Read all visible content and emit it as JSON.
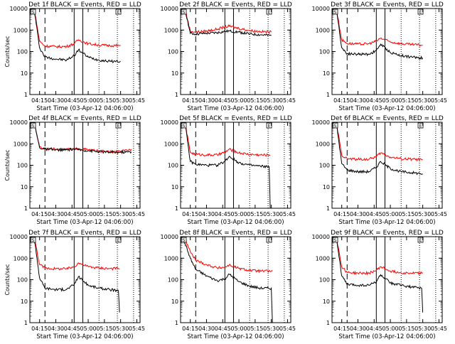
{
  "page": {
    "colors": {
      "events": "#000000",
      "lld": "#ff0000",
      "axes": "#000000"
    }
  },
  "panel_common": {
    "xlabel": "Start Time (03-Apr-12 04:06:00)",
    "ylabel": "Counts/sec",
    "x_ticks": [
      "04:15",
      "04:30",
      "04:45",
      "05:00",
      "05:15",
      "05:30",
      "05:45"
    ],
    "y_ticks": [
      "1",
      "10",
      "100",
      "1000",
      "10000"
    ],
    "marker_labels": [
      "S",
      "E"
    ]
  },
  "chart_data": [
    {
      "type": "line",
      "title": "Det 1f BLACK = Events, RED = LLD",
      "show_ylabel": true,
      "xlim": [
        "04:06",
        "05:48"
      ],
      "ylim": [
        1,
        10000
      ],
      "y_scale": "log",
      "x": [
        "04:06",
        "04:10",
        "04:15",
        "04:20",
        "04:30",
        "04:40",
        "04:47",
        "04:51",
        "05:00",
        "05:10",
        "05:20",
        "05:30"
      ],
      "series": [
        {
          "name": "BLACK = Events",
          "values": [
            9000,
            9000,
            150,
            55,
            45,
            40,
            65,
            120,
            55,
            40,
            35,
            35
          ]
        },
        {
          "name": "RED = LLD",
          "values": [
            10000,
            10000,
            300,
            180,
            170,
            170,
            230,
            350,
            230,
            200,
            190,
            190
          ]
        }
      ]
    },
    {
      "type": "line",
      "title": "Det 2f BLACK = Events, RED = LLD",
      "show_ylabel": false,
      "xlim": [
        "04:06",
        "05:48"
      ],
      "ylim": [
        1,
        10000
      ],
      "y_scale": "log",
      "x": [
        "04:06",
        "04:10",
        "04:15",
        "04:20",
        "04:30",
        "04:40",
        "04:47",
        "04:51",
        "05:00",
        "05:10",
        "05:20",
        "05:30"
      ],
      "series": [
        {
          "name": "BLACK = Events",
          "values": [
            10000,
            10000,
            700,
            650,
            700,
            750,
            850,
            900,
            800,
            650,
            600,
            550
          ]
        },
        {
          "name": "RED = LLD",
          "values": [
            10000,
            10000,
            900,
            800,
            900,
            1100,
            1400,
            1500,
            1200,
            950,
            850,
            800
          ]
        }
      ]
    },
    {
      "type": "line",
      "title": "Det 3f BLACK = Events, RED = LLD",
      "show_ylabel": false,
      "xlim": [
        "04:06",
        "05:48"
      ],
      "ylim": [
        1,
        10000
      ],
      "y_scale": "log",
      "x": [
        "04:06",
        "04:10",
        "04:15",
        "04:20",
        "04:30",
        "04:40",
        "04:47",
        "04:51",
        "05:00",
        "05:10",
        "05:20",
        "05:30"
      ],
      "series": [
        {
          "name": "BLACK = Events",
          "values": [
            10000,
            10000,
            150,
            80,
            75,
            75,
            110,
            220,
            90,
            65,
            55,
            50
          ]
        },
        {
          "name": "RED = LLD",
          "values": [
            10000,
            10000,
            350,
            240,
            220,
            230,
            300,
            420,
            280,
            230,
            210,
            200
          ]
        }
      ]
    },
    {
      "type": "line",
      "title": "Det 4f BLACK = Events, RED = LLD",
      "show_ylabel": true,
      "xlim": [
        "04:06",
        "05:48"
      ],
      "ylim": [
        1,
        10000
      ],
      "y_scale": "log",
      "x": [
        "04:06",
        "04:10",
        "04:15",
        "04:20",
        "04:30",
        "04:40",
        "04:47",
        "04:51",
        "05:00",
        "05:10",
        "05:20",
        "05:30",
        "05:40"
      ],
      "series": [
        {
          "name": "BLACK = Events",
          "values": [
            10000,
            10000,
            650,
            560,
            520,
            520,
            560,
            520,
            480,
            430,
            400,
            400,
            420
          ]
        },
        {
          "name": "RED = LLD",
          "values": [
            10000,
            10000,
            700,
            600,
            550,
            540,
            550,
            600,
            520,
            450,
            420,
            430,
            550
          ]
        }
      ]
    },
    {
      "type": "line",
      "title": "Det 5f BLACK = Events, RED = LLD",
      "show_ylabel": false,
      "xlim": [
        "04:06",
        "05:48"
      ],
      "ylim": [
        1,
        10000
      ],
      "y_scale": "log",
      "x": [
        "04:06",
        "04:10",
        "04:15",
        "04:20",
        "04:30",
        "04:40",
        "04:47",
        "04:51",
        "05:00",
        "05:10",
        "05:20",
        "05:28",
        "05:29"
      ],
      "series": [
        {
          "name": "BLACK = Events",
          "values": [
            10000,
            10000,
            150,
            110,
            100,
            100,
            150,
            260,
            130,
            100,
            90,
            85,
            1
          ]
        },
        {
          "name": "RED = LLD",
          "values": [
            10000,
            10000,
            400,
            320,
            300,
            300,
            400,
            550,
            380,
            320,
            300,
            300,
            300
          ]
        }
      ]
    },
    {
      "type": "line",
      "title": "Det 6f BLACK = Events, RED = LLD",
      "show_ylabel": false,
      "xlim": [
        "04:06",
        "05:48"
      ],
      "ylim": [
        1,
        10000
      ],
      "y_scale": "log",
      "x": [
        "04:06",
        "04:10",
        "04:15",
        "04:20",
        "04:30",
        "04:40",
        "04:47",
        "04:51",
        "05:00",
        "05:10",
        "05:20",
        "05:30"
      ],
      "series": [
        {
          "name": "BLACK = Events",
          "values": [
            10000,
            10000,
            120,
            60,
            50,
            50,
            80,
            150,
            70,
            50,
            45,
            40
          ]
        },
        {
          "name": "RED = LLD",
          "values": [
            10000,
            10000,
            300,
            200,
            190,
            190,
            250,
            380,
            240,
            200,
            190,
            180
          ]
        }
      ]
    },
    {
      "type": "line",
      "title": "Det 7f BLACK = Events, RED = LLD",
      "show_ylabel": true,
      "xlim": [
        "04:06",
        "05:48"
      ],
      "ylim": [
        1,
        10000
      ],
      "y_scale": "log",
      "x": [
        "04:06",
        "04:10",
        "04:15",
        "04:20",
        "04:30",
        "04:40",
        "04:47",
        "04:51",
        "05:00",
        "05:10",
        "05:20",
        "05:28",
        "05:29"
      ],
      "series": [
        {
          "name": "BLACK = Events",
          "values": [
            10000,
            10000,
            120,
            40,
            35,
            35,
            60,
            140,
            55,
            40,
            35,
            30,
            3
          ]
        },
        {
          "name": "RED = LLD",
          "values": [
            10000,
            10000,
            500,
            350,
            320,
            320,
            400,
            600,
            400,
            350,
            330,
            330,
            330
          ]
        }
      ]
    },
    {
      "type": "line",
      "title": "Det 8f BLACK = Events, RED = LLD",
      "show_ylabel": false,
      "xlim": [
        "04:06",
        "05:48"
      ],
      "ylim": [
        1,
        10000
      ],
      "y_scale": "log",
      "x": [
        "04:06",
        "04:10",
        "04:15",
        "04:20",
        "04:30",
        "04:40",
        "04:47",
        "04:51",
        "05:00",
        "05:10",
        "05:20",
        "05:30",
        "05:31"
      ],
      "series": [
        {
          "name": "BLACK = Events",
          "values": [
            10000,
            5000,
            1000,
            300,
            150,
            90,
            110,
            180,
            80,
            50,
            40,
            40,
            1
          ]
        },
        {
          "name": "RED = LLD",
          "values": [
            10000,
            8000,
            2000,
            800,
            500,
            350,
            380,
            480,
            330,
            270,
            250,
            250,
            250
          ]
        }
      ]
    },
    {
      "type": "line",
      "title": "Det 9f BLACK = Events, RED = LLD",
      "show_ylabel": false,
      "xlim": [
        "04:06",
        "05:48"
      ],
      "ylim": [
        1,
        10000
      ],
      "y_scale": "log",
      "x": [
        "04:06",
        "04:10",
        "04:15",
        "04:20",
        "04:30",
        "04:40",
        "04:47",
        "04:51",
        "05:00",
        "05:10",
        "05:20",
        "05:29",
        "05:30"
      ],
      "series": [
        {
          "name": "BLACK = Events",
          "values": [
            10000,
            10000,
            150,
            60,
            55,
            55,
            80,
            170,
            70,
            55,
            45,
            40,
            3
          ]
        },
        {
          "name": "RED = LLD",
          "values": [
            10000,
            10000,
            400,
            220,
            200,
            200,
            270,
            400,
            250,
            210,
            200,
            200,
            200
          ]
        }
      ]
    }
  ]
}
